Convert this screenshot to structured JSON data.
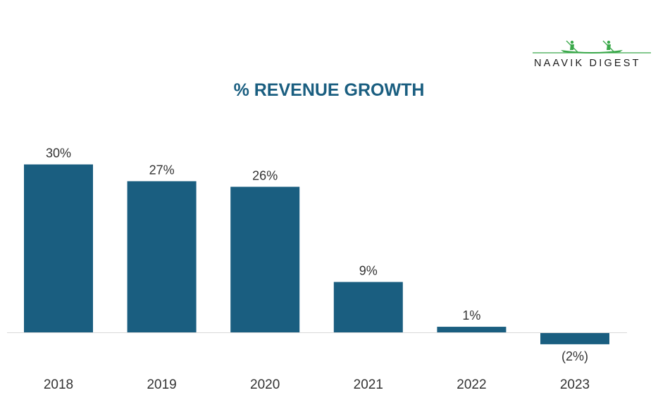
{
  "brand": {
    "name": "NAAVIK DIGEST",
    "logo_icon": "rowing-boat-icon",
    "logo_color": "#3aa84a"
  },
  "chart_data": {
    "type": "bar",
    "title": "% REVENUE GROWTH",
    "categories": [
      "2018",
      "2019",
      "2020",
      "2021",
      "2022",
      "2023"
    ],
    "values": [
      30,
      27,
      26,
      9,
      1,
      -2
    ],
    "data_labels": [
      "30%",
      "27%",
      "26%",
      "9%",
      "1%",
      "(2%)"
    ],
    "unit": "%",
    "xlabel": "",
    "ylabel": "",
    "ylim": [
      -2,
      30
    ],
    "grid": false,
    "legend": "none",
    "colors": {
      "bar": "#1a5e80",
      "baseline": "#d9d9d9",
      "title": "#1a5e80"
    }
  }
}
